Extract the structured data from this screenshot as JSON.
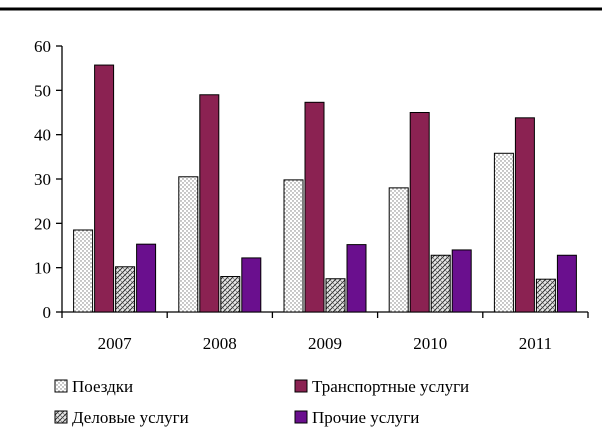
{
  "chart_data": {
    "type": "bar",
    "categories": [
      "2007",
      "2008",
      "2009",
      "2010",
      "2011"
    ],
    "series": [
      {
        "name": "Поездки",
        "values": [
          18.5,
          30.5,
          29.8,
          28.0,
          35.8
        ],
        "fill": "dots"
      },
      {
        "name": "Транспортные услуги",
        "values": [
          55.7,
          49.0,
          47.3,
          45.0,
          43.8
        ],
        "fill": "#8b2252"
      },
      {
        "name": "Деловые услуги",
        "values": [
          10.2,
          8.0,
          7.5,
          12.8,
          7.4
        ],
        "fill": "crosshatch"
      },
      {
        "name": "Прочие услуги",
        "values": [
          15.3,
          12.2,
          15.2,
          14.0,
          12.8
        ],
        "fill": "#6a0f8e"
      }
    ],
    "ylim": [
      0,
      60
    ],
    "yticks": [
      "0",
      "10",
      "20",
      "30",
      "40",
      "50",
      "60"
    ],
    "grid": false,
    "legend_position": "bottom",
    "title": "",
    "xlabel": "",
    "ylabel": ""
  }
}
